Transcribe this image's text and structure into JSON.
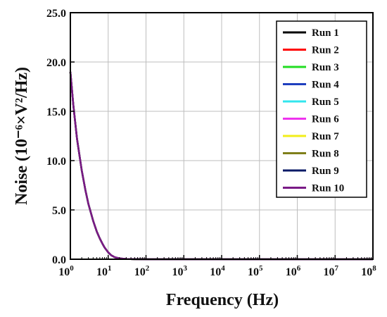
{
  "chart_data": {
    "type": "line",
    "xlabel": "Frequency (Hz)",
    "ylabel": "Noise (10⁻⁶×V²/Hz)",
    "x_scale": "log",
    "xlim": [
      1,
      100000000
    ],
    "ylim": [
      0,
      25
    ],
    "grid": true,
    "legend_position": "top-right",
    "x_ticks": [
      1,
      10,
      100,
      1000,
      10000,
      100000,
      1000000,
      10000000,
      100000000
    ],
    "x_tick_labels": [
      {
        "base": "10",
        "exp": "0"
      },
      {
        "base": "10",
        "exp": "1"
      },
      {
        "base": "10",
        "exp": "2"
      },
      {
        "base": "10",
        "exp": "3"
      },
      {
        "base": "10",
        "exp": "4"
      },
      {
        "base": "10",
        "exp": "5"
      },
      {
        "base": "10",
        "exp": "6"
      },
      {
        "base": "10",
        "exp": "7"
      },
      {
        "base": "10",
        "exp": "8"
      }
    ],
    "y_ticks": [
      0,
      5,
      10,
      15,
      20,
      25
    ],
    "y_tick_labels": [
      "0.0",
      "5.0",
      "10.0",
      "15.0",
      "20.0",
      "25.0"
    ],
    "x": [
      1,
      1.2,
      1.5,
      2,
      2.5,
      3,
      4,
      5,
      6,
      7,
      8,
      10,
      12,
      15,
      20,
      30,
      50,
      100,
      1000,
      10000,
      100000,
      1000000,
      10000000,
      100000000
    ],
    "series": [
      {
        "name": "Run 1",
        "color": "#000000",
        "values": [
          19.0,
          15.6,
          12.2,
          9.0,
          7.0,
          5.6,
          3.9,
          2.8,
          2.1,
          1.6,
          1.2,
          0.7,
          0.4,
          0.2,
          0.08,
          0.03,
          0.01,
          0,
          0,
          0,
          0,
          0,
          0,
          0
        ]
      },
      {
        "name": "Run 2",
        "color": "#ff0000",
        "values": [
          19.0,
          15.6,
          12.2,
          9.0,
          7.0,
          5.6,
          3.9,
          2.8,
          2.1,
          1.6,
          1.2,
          0.7,
          0.4,
          0.2,
          0.08,
          0.03,
          0.01,
          0,
          0,
          0,
          0,
          0,
          0,
          0
        ]
      },
      {
        "name": "Run 3",
        "color": "#22dd22",
        "values": [
          19.0,
          15.6,
          12.2,
          9.0,
          7.0,
          5.6,
          3.9,
          2.8,
          2.1,
          1.6,
          1.2,
          0.7,
          0.4,
          0.2,
          0.08,
          0.03,
          0.01,
          0,
          0,
          0,
          0,
          0,
          0,
          0
        ]
      },
      {
        "name": "Run 4",
        "color": "#1f3fbf",
        "values": [
          19.0,
          15.6,
          12.2,
          9.0,
          7.0,
          5.6,
          3.9,
          2.8,
          2.1,
          1.6,
          1.2,
          0.7,
          0.4,
          0.2,
          0.08,
          0.03,
          0.01,
          0,
          0,
          0,
          0,
          0,
          0,
          0
        ]
      },
      {
        "name": "Run 5",
        "color": "#33e6ee",
        "values": [
          19.0,
          15.6,
          12.2,
          9.0,
          7.0,
          5.6,
          3.9,
          2.8,
          2.1,
          1.6,
          1.2,
          0.7,
          0.4,
          0.2,
          0.08,
          0.03,
          0.01,
          0,
          0,
          0,
          0,
          0,
          0,
          0
        ]
      },
      {
        "name": "Run 6",
        "color": "#ee33ee",
        "values": [
          19.0,
          15.6,
          12.2,
          9.0,
          7.0,
          5.6,
          3.9,
          2.8,
          2.1,
          1.6,
          1.2,
          0.7,
          0.4,
          0.2,
          0.08,
          0.03,
          0.01,
          0,
          0,
          0,
          0,
          0,
          0,
          0
        ]
      },
      {
        "name": "Run 7",
        "color": "#f2ee1a",
        "values": [
          19.0,
          15.6,
          12.2,
          9.0,
          7.0,
          5.6,
          3.9,
          2.8,
          2.1,
          1.6,
          1.2,
          0.7,
          0.4,
          0.2,
          0.08,
          0.03,
          0.01,
          0,
          0,
          0,
          0,
          0,
          0,
          0
        ]
      },
      {
        "name": "Run 8",
        "color": "#7f7f1a",
        "values": [
          19.0,
          15.6,
          12.2,
          9.0,
          7.0,
          5.6,
          3.9,
          2.8,
          2.1,
          1.6,
          1.2,
          0.7,
          0.4,
          0.2,
          0.08,
          0.03,
          0.01,
          0,
          0,
          0,
          0,
          0,
          0,
          0
        ]
      },
      {
        "name": "Run 9",
        "color": "#0a1a66",
        "values": [
          19.0,
          15.6,
          12.2,
          9.0,
          7.0,
          5.6,
          3.9,
          2.8,
          2.1,
          1.6,
          1.2,
          0.7,
          0.4,
          0.2,
          0.08,
          0.03,
          0.01,
          0,
          0,
          0,
          0,
          0,
          0,
          0
        ]
      },
      {
        "name": "Run 10",
        "color": "#7a1a86",
        "values": [
          19.0,
          15.6,
          12.2,
          9.0,
          7.0,
          5.6,
          3.9,
          2.8,
          2.1,
          1.6,
          1.2,
          0.7,
          0.4,
          0.2,
          0.08,
          0.03,
          0.01,
          0,
          0,
          0,
          0,
          0,
          0,
          0
        ]
      }
    ]
  }
}
